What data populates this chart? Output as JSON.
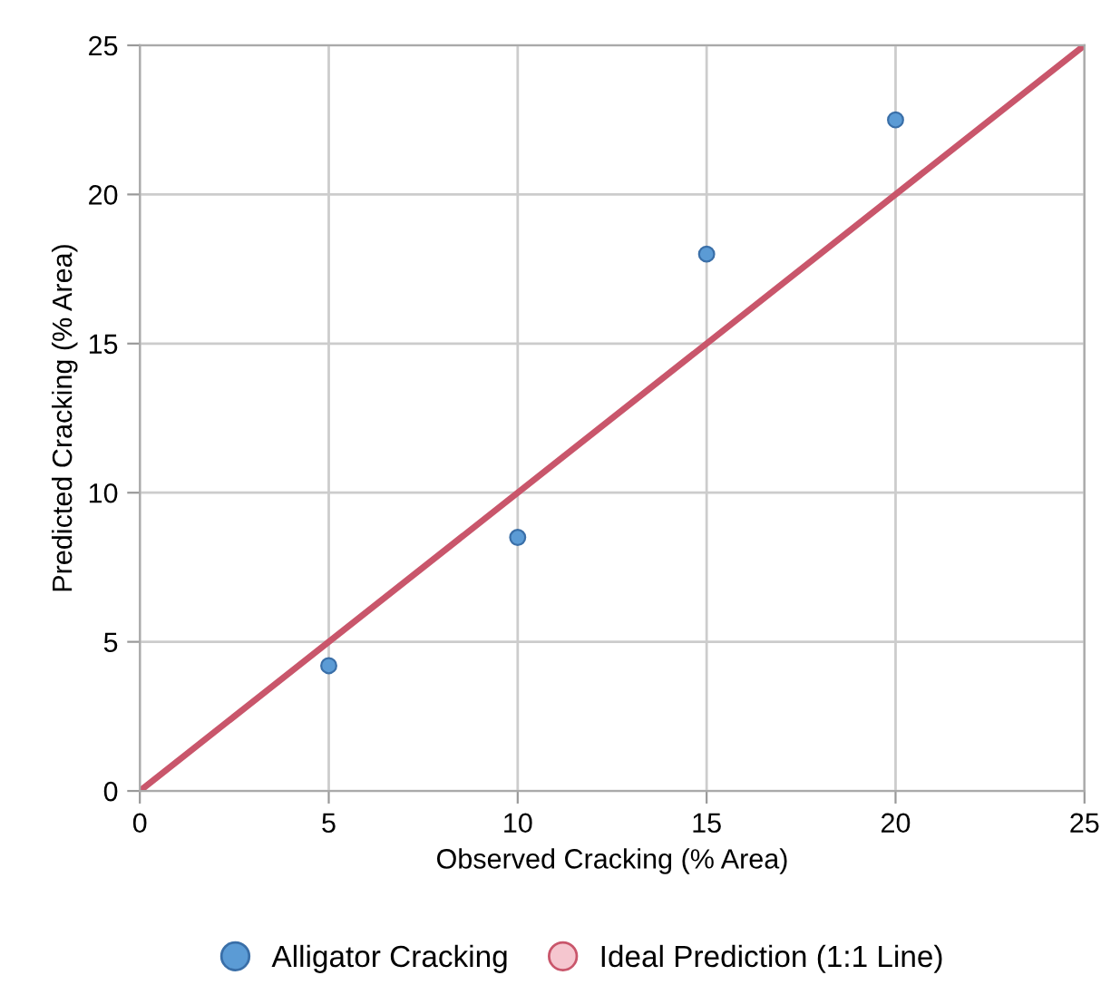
{
  "chart_data": {
    "type": "scatter",
    "xlabel": "Observed Cracking (% Area)",
    "ylabel": "Predicted Cracking (% Area)",
    "xlim": [
      0,
      25
    ],
    "ylim": [
      0,
      25
    ],
    "xticks": [
      0,
      5,
      10,
      15,
      20,
      25
    ],
    "yticks": [
      0,
      5,
      10,
      15,
      20,
      25
    ],
    "grid": true,
    "legend": "bottom",
    "series": [
      {
        "name": "Alligator Cracking",
        "marker": "circle",
        "color": "#5b9bd5",
        "x": [
          5,
          10,
          15,
          20
        ],
        "values": [
          4.2,
          8.5,
          18,
          22.5
        ]
      },
      {
        "name": "Ideal Prediction (1:1 Line)",
        "type": "line",
        "marker": "none",
        "color": "#c9566b",
        "x": [
          0,
          25
        ],
        "values": [
          0,
          25
        ],
        "line_style": "solid"
      }
    ]
  }
}
